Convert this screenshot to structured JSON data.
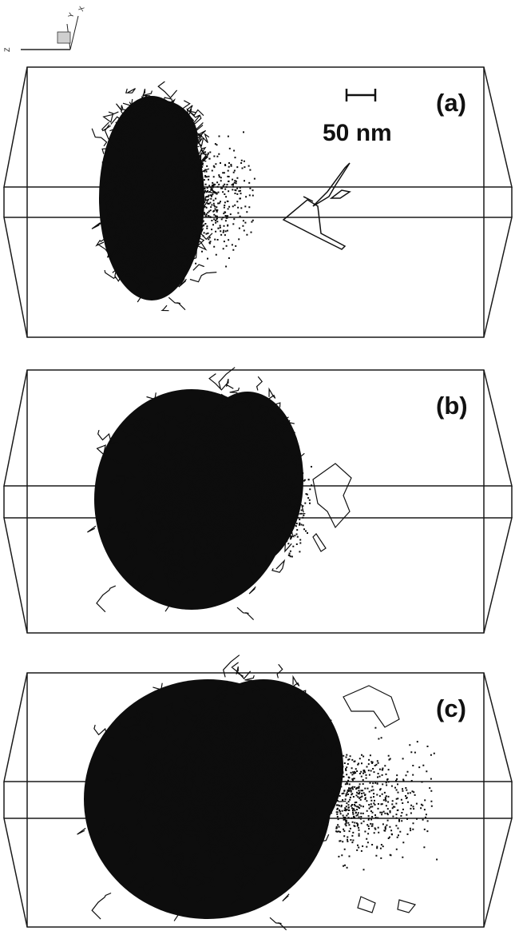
{
  "axes_triad": {
    "z_label": "Z",
    "y_label": "Y",
    "x_label": "X"
  },
  "scale_bar": {
    "label": "50 nm"
  },
  "panels": [
    {
      "label": "(a)"
    },
    {
      "label": "(b)"
    },
    {
      "label": "(c)"
    }
  ],
  "colors": {
    "box_line": "#1a1a1a",
    "dislocations": "#0d0d0d",
    "background": "#ffffff"
  }
}
